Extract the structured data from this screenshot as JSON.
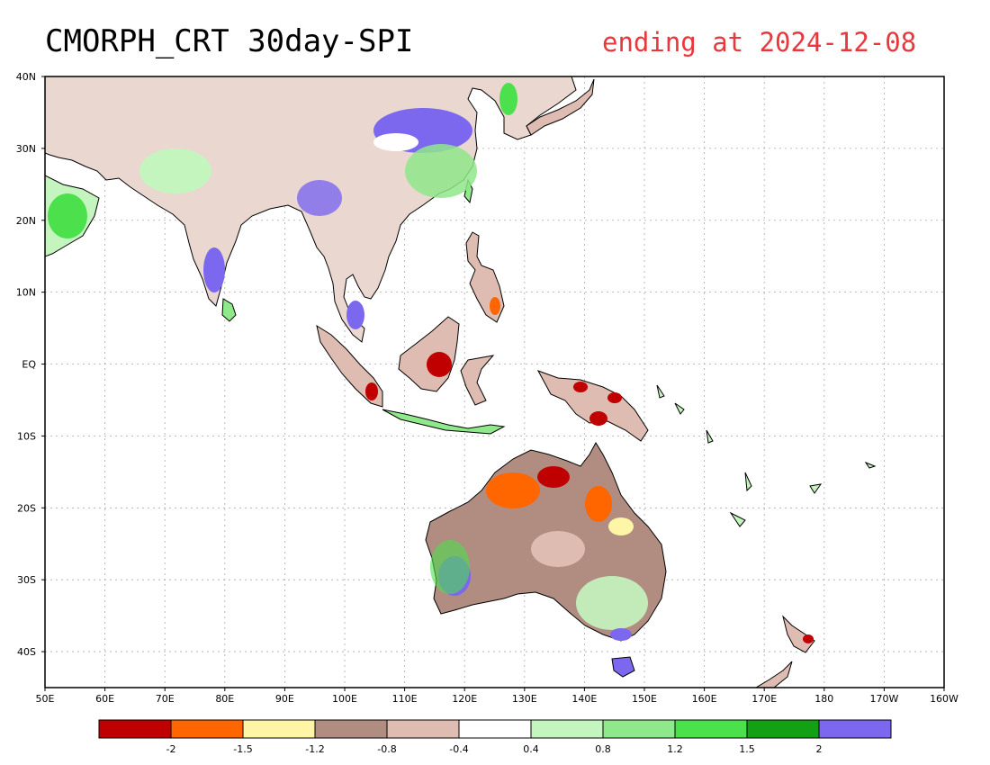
{
  "title": "CMORPH_CRT 30day-SPI",
  "date_text": "ending at 2024-12-08",
  "colors": {
    "title_date": "#e8383d",
    "frame": "#000000",
    "coast": "#000000",
    "grid": "#aaaaaa"
  },
  "lat_ticks": [
    "40N",
    "30N",
    "20N",
    "10N",
    "EQ",
    "10S",
    "20S",
    "30S",
    "40S"
  ],
  "lon_ticks": [
    "50E",
    "60E",
    "70E",
    "80E",
    "90E",
    "100E",
    "110E",
    "120E",
    "130E",
    "140E",
    "150E",
    "160E",
    "170E",
    "180",
    "170W",
    "160W"
  ],
  "colorbar": {
    "colors": [
      "#c00000",
      "#ff6600",
      "#fff5a6",
      "#b08d80",
      "#dfbcb2",
      "#ffffff",
      "#c4f5bf",
      "#8fe88a",
      "#4ce04c",
      "#14a014",
      "#7b68ee"
    ],
    "labels": [
      "-2",
      "-1.5",
      "-1.2",
      "-0.8",
      "-0.4",
      "0.4",
      "0.8",
      "1.2",
      "1.5",
      "2"
    ]
  },
  "map": {
    "type": "precipitation-index-map",
    "lat_range": [
      -45,
      40
    ],
    "lon_range": [
      50,
      200
    ]
  }
}
